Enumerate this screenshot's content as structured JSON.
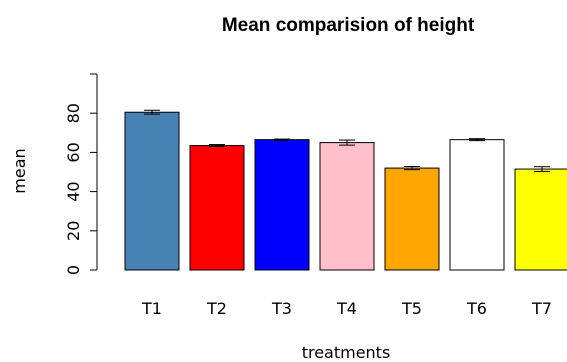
{
  "chart_data": {
    "type": "bar",
    "title": "Mean comparision of height",
    "xlabel": "treatments",
    "ylabel": "mean",
    "ylim": [
      0,
      100
    ],
    "yticks": [
      0,
      20,
      40,
      60,
      80
    ],
    "categories": [
      "T1",
      "T2",
      "T3",
      "T4",
      "T5",
      "T6",
      "T7"
    ],
    "values": [
      80.5,
      63.5,
      66.5,
      65,
      52,
      66.5,
      51.5
    ],
    "errors": [
      1.0,
      0.5,
      0.3,
      1.3,
      0.8,
      0.5,
      1.2
    ],
    "colors": [
      "#4682B4",
      "#FF0000",
      "#0000FF",
      "#FFC0CB",
      "#FFA500",
      "#FFFFFF",
      "#FFFF00"
    ],
    "grid": false,
    "error_bars": true
  }
}
